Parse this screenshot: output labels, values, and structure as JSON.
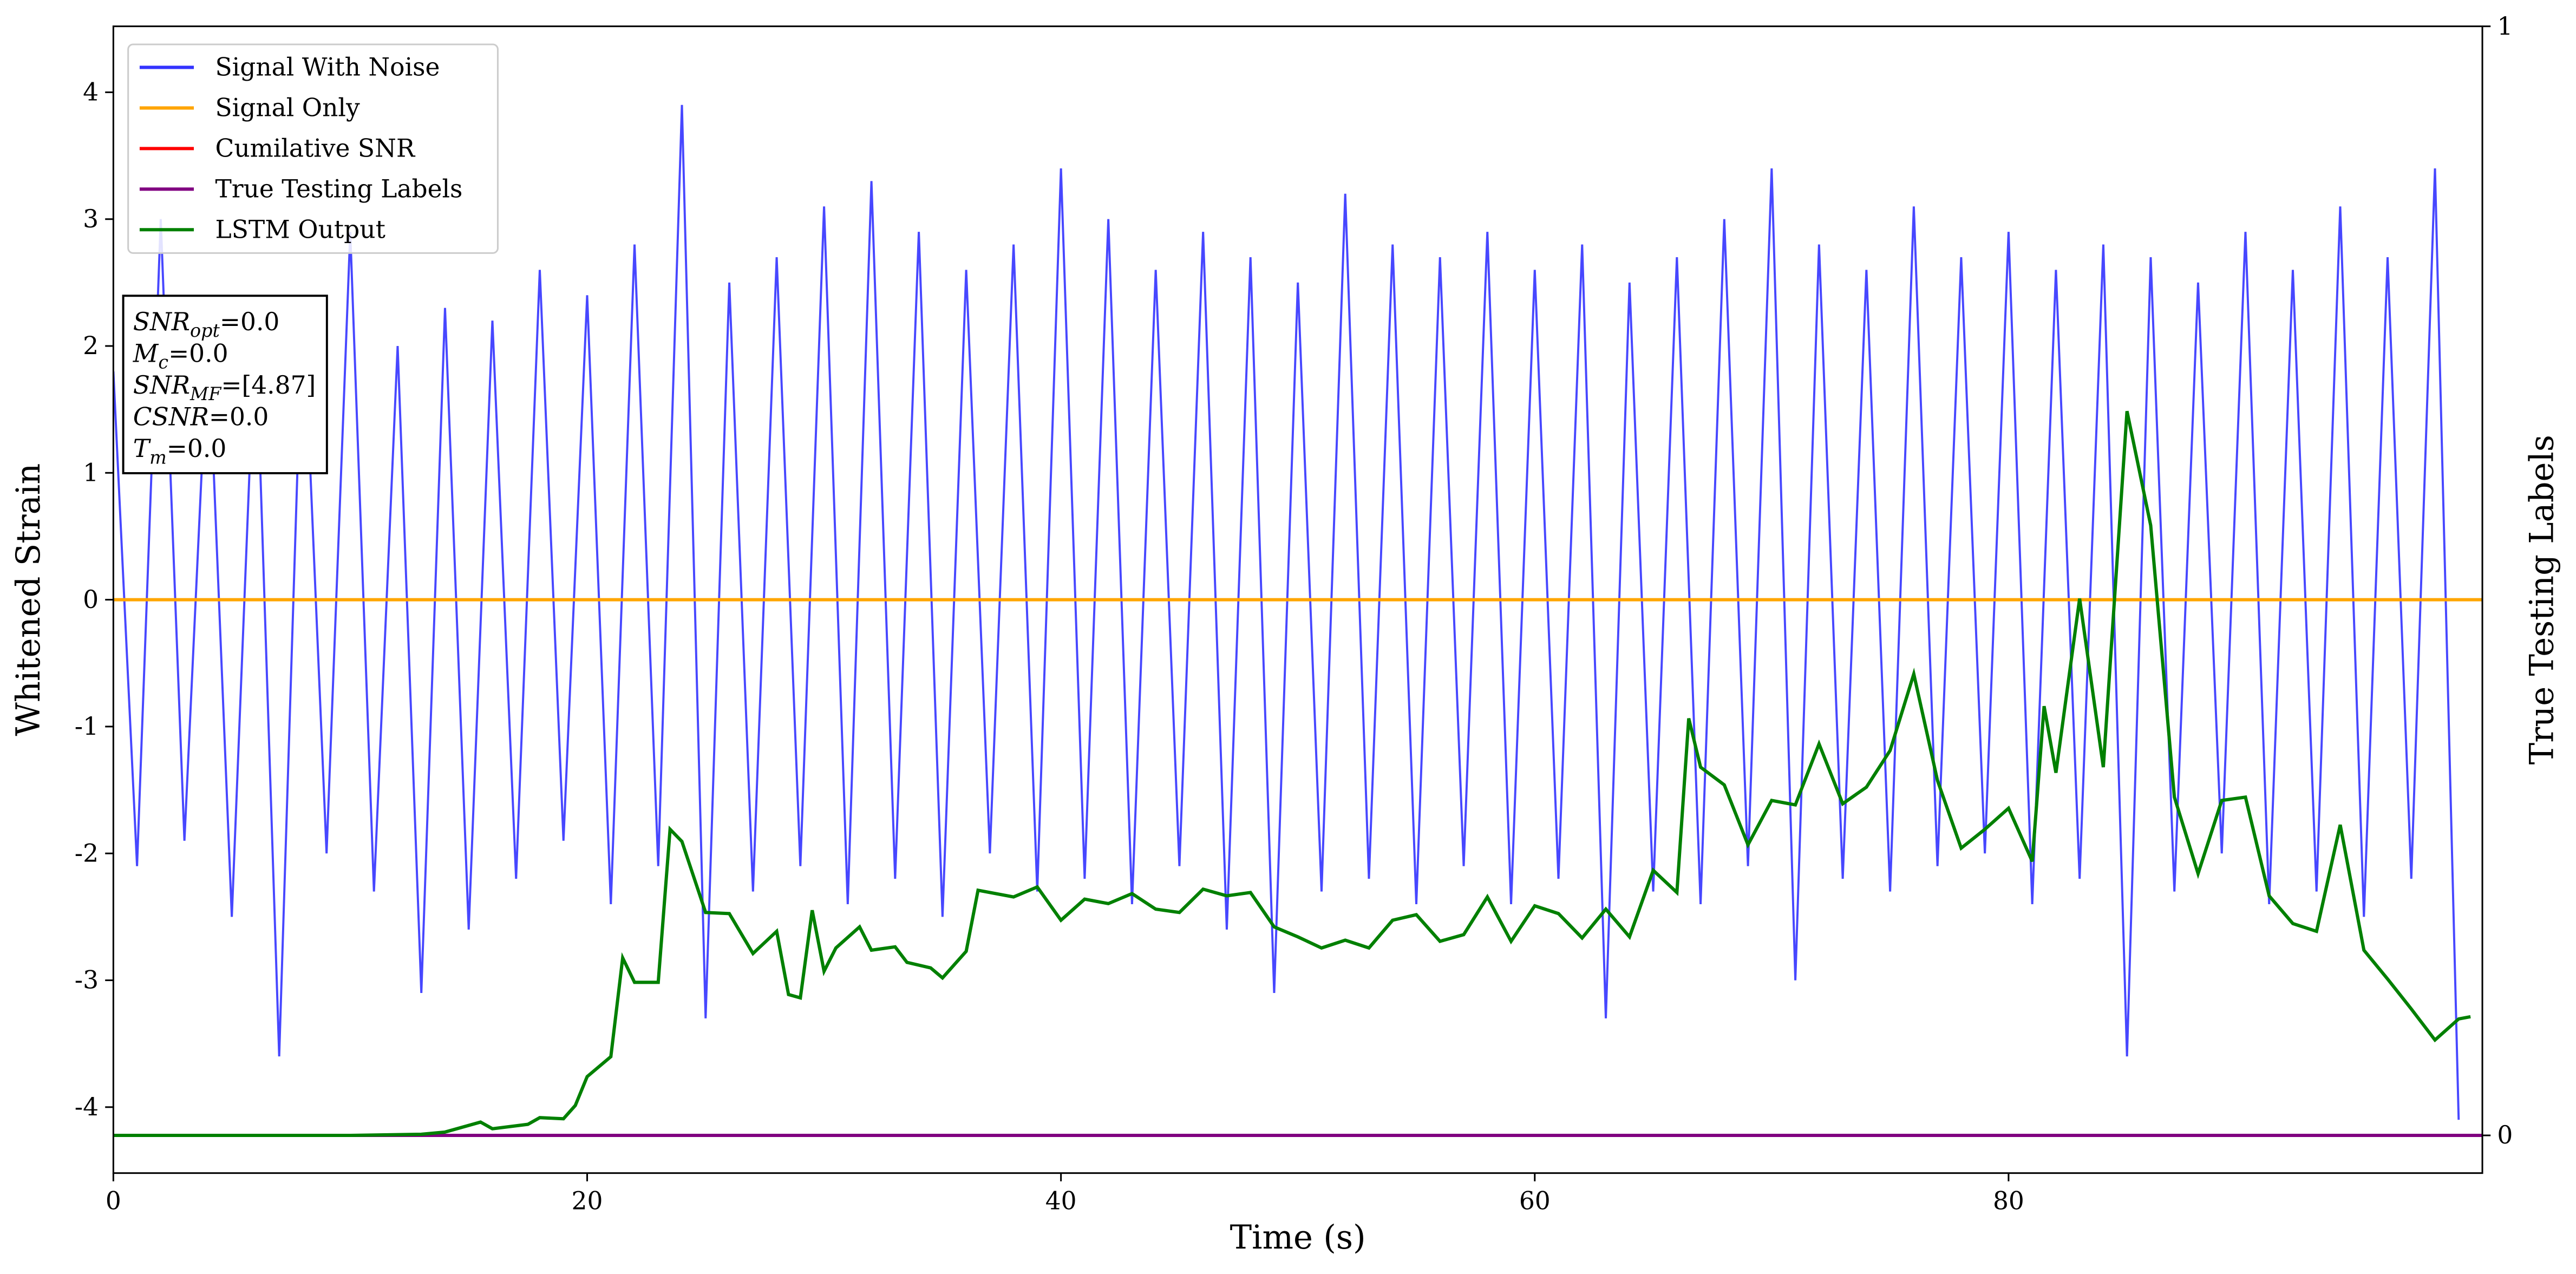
{
  "chart_data": {
    "type": "line",
    "xlabel": "Time (s)",
    "ylabel": "Whitened Strain",
    "y2label": "True Testing Labels",
    "xlim": [
      0,
      100
    ],
    "ylim": [
      -4.52,
      4.52
    ],
    "y2lim": [
      -0.034,
      1
    ],
    "xticks": [
      0,
      20,
      40,
      60,
      80
    ],
    "yticks": [
      -4,
      -3,
      -2,
      -1,
      0,
      1,
      2,
      3,
      4
    ],
    "y2ticks": [
      0,
      1
    ],
    "legend": "upper left",
    "series": [
      {
        "name": "Signal With Noise",
        "color": "#3333ff",
        "axis": "y",
        "x": [
          0,
          1,
          2,
          3,
          4,
          5,
          6,
          7,
          8,
          9,
          10,
          11,
          12,
          13,
          14,
          15,
          16,
          17,
          18,
          19,
          20,
          21,
          22,
          23,
          24,
          25,
          26,
          27,
          28,
          29,
          30,
          31,
          32,
          33,
          34,
          35,
          36,
          37,
          38,
          39,
          40,
          41,
          42,
          43,
          44,
          45,
          46,
          47,
          48,
          49,
          50,
          51,
          52,
          53,
          54,
          55,
          56,
          57,
          58,
          59,
          60,
          61,
          62,
          63,
          64,
          65,
          66,
          67,
          68,
          69,
          70,
          71,
          72,
          73,
          74,
          75,
          76,
          77,
          78,
          79,
          80,
          81,
          82,
          83,
          84,
          85,
          86,
          87,
          88,
          89,
          90,
          91,
          92,
          93,
          94,
          95,
          96,
          97,
          98,
          99
        ],
        "values": [
          1.8,
          -2.1,
          3.0,
          -1.9,
          2.1,
          -2.5,
          2.2,
          -3.6,
          2.4,
          -2.0,
          2.9,
          -2.3,
          2.0,
          -3.1,
          2.3,
          -2.6,
          2.2,
          -2.2,
          2.6,
          -1.9,
          2.4,
          -2.4,
          2.8,
          -2.1,
          3.9,
          -3.3,
          2.5,
          -2.3,
          2.7,
          -2.1,
          3.1,
          -2.4,
          3.3,
          -2.2,
          2.9,
          -2.5,
          2.6,
          -2.0,
          2.8,
          -2.3,
          3.4,
          -2.2,
          3.0,
          -2.4,
          2.6,
          -2.1,
          2.9,
          -2.6,
          2.7,
          -3.1,
          2.5,
          -2.3,
          3.2,
          -2.2,
          2.8,
          -2.4,
          2.7,
          -2.1,
          2.9,
          -2.4,
          2.6,
          -2.2,
          2.8,
          -3.3,
          2.5,
          -2.3,
          2.7,
          -2.4,
          3.0,
          -2.1,
          3.4,
          -3.0,
          2.8,
          -2.2,
          2.6,
          -2.3,
          3.1,
          -2.1,
          2.7,
          -2.0,
          2.9,
          -2.4,
          2.6,
          -2.2,
          2.8,
          -3.6,
          2.7,
          -2.3,
          2.5,
          -2.0,
          2.9,
          -2.4,
          2.6,
          -2.3,
          3.1,
          -2.5,
          2.7,
          -2.2,
          3.4,
          -4.1
        ]
      },
      {
        "name": "Signal Only",
        "color": "#ffa500",
        "axis": "y",
        "x": [
          0,
          100
        ],
        "values": [
          0,
          0
        ]
      },
      {
        "name": "Cumilative SNR",
        "color": "#ff0000",
        "axis": "y2",
        "x": [
          0,
          100
        ],
        "values": [
          0,
          0
        ]
      },
      {
        "name": "True Testing Labels",
        "color": "#800080",
        "axis": "y2",
        "x": [
          0,
          100
        ],
        "values": [
          0,
          0
        ]
      },
      {
        "name": "LSTM Output",
        "color": "#008000",
        "axis": "y2",
        "x": [
          0,
          5,
          10,
          13,
          14,
          15.5,
          16,
          17.5,
          18,
          19,
          19.5,
          20,
          21,
          21.5,
          22,
          23,
          23.5,
          24,
          25,
          26,
          27,
          28,
          28.5,
          29,
          29.5,
          30,
          30.5,
          31.5,
          32,
          33,
          33.5,
          34.5,
          35,
          36,
          36.5,
          38,
          39,
          40,
          41,
          42,
          43,
          44,
          45,
          46,
          47,
          48,
          49,
          50,
          51,
          52,
          53,
          54,
          55,
          56,
          57,
          58,
          59,
          60,
          61,
          62,
          63,
          64,
          65,
          66,
          66.5,
          67,
          68,
          69,
          70,
          71,
          72,
          73,
          74,
          75,
          76,
          77,
          78,
          79,
          80,
          81,
          81.5,
          82,
          83,
          84,
          85,
          86,
          87,
          88,
          89,
          90,
          91,
          92,
          93,
          94,
          95,
          96,
          97,
          98,
          99,
          99.5
        ],
        "values": [
          0,
          0,
          0,
          0.001,
          0.003,
          0.012,
          0.006,
          0.01,
          0.016,
          0.015,
          0.027,
          0.053,
          0.071,
          0.16,
          0.138,
          0.138,
          0.276,
          0.265,
          0.201,
          0.2,
          0.164,
          0.184,
          0.127,
          0.124,
          0.203,
          0.148,
          0.169,
          0.188,
          0.167,
          0.17,
          0.156,
          0.151,
          0.142,
          0.166,
          0.221,
          0.215,
          0.224,
          0.194,
          0.213,
          0.209,
          0.218,
          0.204,
          0.201,
          0.222,
          0.216,
          0.219,
          0.188,
          0.179,
          0.169,
          0.176,
          0.169,
          0.194,
          0.199,
          0.175,
          0.181,
          0.215,
          0.175,
          0.207,
          0.2,
          0.178,
          0.204,
          0.179,
          0.239,
          0.219,
          0.376,
          0.332,
          0.316,
          0.262,
          0.302,
          0.298,
          0.353,
          0.299,
          0.314,
          0.347,
          0.416,
          0.32,
          0.259,
          0.276,
          0.295,
          0.247,
          0.387,
          0.327,
          0.484,
          0.332,
          0.653,
          0.55,
          0.305,
          0.236,
          0.302,
          0.305,
          0.216,
          0.191,
          0.184,
          0.28,
          0.167,
          0.141,
          0.114,
          0.086,
          0.105,
          0.107
        ]
      }
    ],
    "annotation": [
      {
        "main": "SNR",
        "sub": "opt",
        "rest": "=0.0"
      },
      {
        "main": "M",
        "sub": "c",
        "rest": "=0.0"
      },
      {
        "main": "SNR",
        "sub": "MF",
        "rest": "=[4.87]"
      },
      {
        "main": "CSNR",
        "rest": "=0.0"
      },
      {
        "main": "T",
        "sub": "m",
        "rest": "=0.0"
      }
    ]
  }
}
